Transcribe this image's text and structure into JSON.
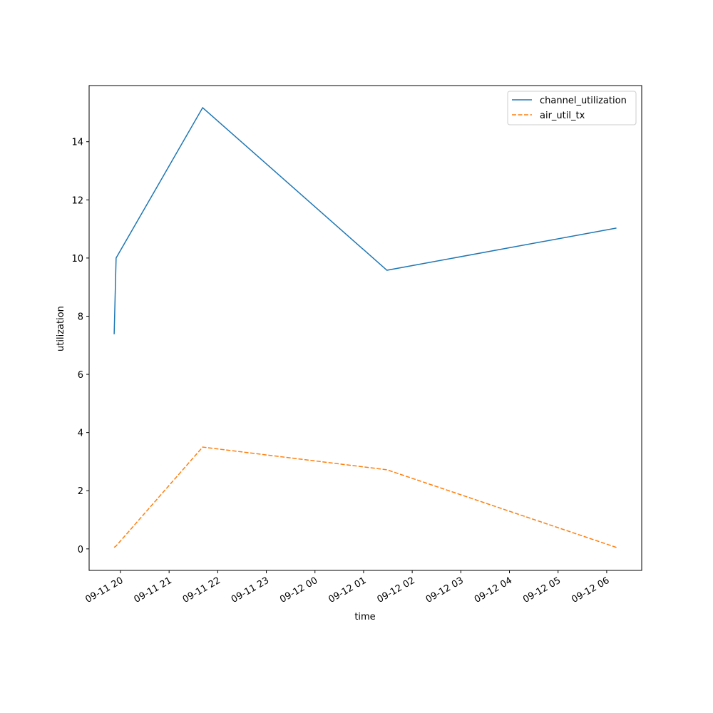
{
  "chart_data": {
    "type": "line",
    "x_label": "time",
    "y_label": "utilization",
    "x": [
      19.87,
      19.91,
      21.69,
      25.48,
      30.2
    ],
    "series": [
      {
        "name": "channel_utilization",
        "color": "#1f77b4",
        "dash": "solid",
        "values": [
          7.38,
          10.0,
          15.17,
          9.58,
          11.03
        ]
      },
      {
        "name": "air_util_tx",
        "color": "#ff7f0e",
        "dash": "dashed",
        "values": [
          0.05,
          0.1,
          3.5,
          2.72,
          0.05
        ]
      }
    ],
    "xlim": [
      19.355,
      30.72
    ],
    "xticks": [
      {
        "value": 20,
        "label": "09-11 20"
      },
      {
        "value": 21,
        "label": "09-11 21"
      },
      {
        "value": 22,
        "label": "09-11 22"
      },
      {
        "value": 23,
        "label": "09-11 23"
      },
      {
        "value": 24,
        "label": "09-12 00"
      },
      {
        "value": 25,
        "label": "09-12 01"
      },
      {
        "value": 26,
        "label": "09-12 02"
      },
      {
        "value": 27,
        "label": "09-12 03"
      },
      {
        "value": 28,
        "label": "09-12 04"
      },
      {
        "value": 29,
        "label": "09-12 05"
      },
      {
        "value": 30,
        "label": "09-12 06"
      }
    ],
    "ylim": [
      -0.74,
      15.93
    ],
    "yticks": [
      0,
      2,
      4,
      6,
      8,
      10,
      12,
      14
    ],
    "legend": "upper right",
    "grid": false
  }
}
